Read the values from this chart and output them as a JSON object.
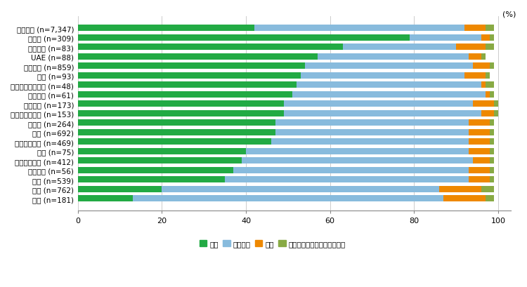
{
  "categories": [
    "全地域計 (n=7,347)",
    "インド (n=309)",
    "ブラジル (n=83)",
    "UAE (n=88)",
    "ベトナム (n=859)",
    "韓国 (n=93)",
    "南アフリカ共和国 (n=48)",
    "オランダ (n=61)",
    "メキシコ (n=173)",
    "オーストラリア (n=153)",
    "ドイツ (n=264)",
    "米国 (n=692)",
    "インドネシア (n=469)",
    "英国 (n=75)",
    "シンガポール (n=412)",
    "フランス (n=56)",
    "タイ (n=539)",
    "中国 (n=762)",
    "香港 (n=181)"
  ],
  "expand": [
    42,
    79,
    63,
    57,
    54,
    53,
    52,
    51,
    49,
    49,
    47,
    47,
    46,
    40,
    39,
    37,
    35,
    20,
    13
  ],
  "maintain": [
    50,
    17,
    27,
    36,
    40,
    39,
    44,
    46,
    45,
    47,
    46,
    46,
    47,
    53,
    55,
    56,
    58,
    66,
    74
  ],
  "shrink": [
    5,
    2,
    7,
    3,
    4,
    5,
    1,
    1,
    5,
    3,
    5,
    5,
    5,
    5,
    4,
    5,
    5,
    10,
    10
  ],
  "third": [
    2,
    1,
    2,
    1,
    1,
    1,
    2,
    1,
    1,
    1,
    1,
    1,
    1,
    1,
    1,
    1,
    1,
    3,
    2
  ],
  "colors": {
    "expand": "#22aa44",
    "maintain": "#88bbdd",
    "shrink": "#ee8800",
    "third": "#88aa44"
  },
  "legend_labels": [
    "拡大",
    "現状維持",
    "縮小",
    "第三国（地域）へ移転、撤退"
  ],
  "xlabel": "(%)",
  "xlim": [
    0,
    103
  ],
  "xticks": [
    0,
    20,
    40,
    60,
    80,
    100
  ],
  "figsize": [
    7.5,
    4.1
  ],
  "dpi": 100,
  "bar_height": 0.65,
  "bg_color": "#ffffff",
  "grid_color": "#cccccc"
}
